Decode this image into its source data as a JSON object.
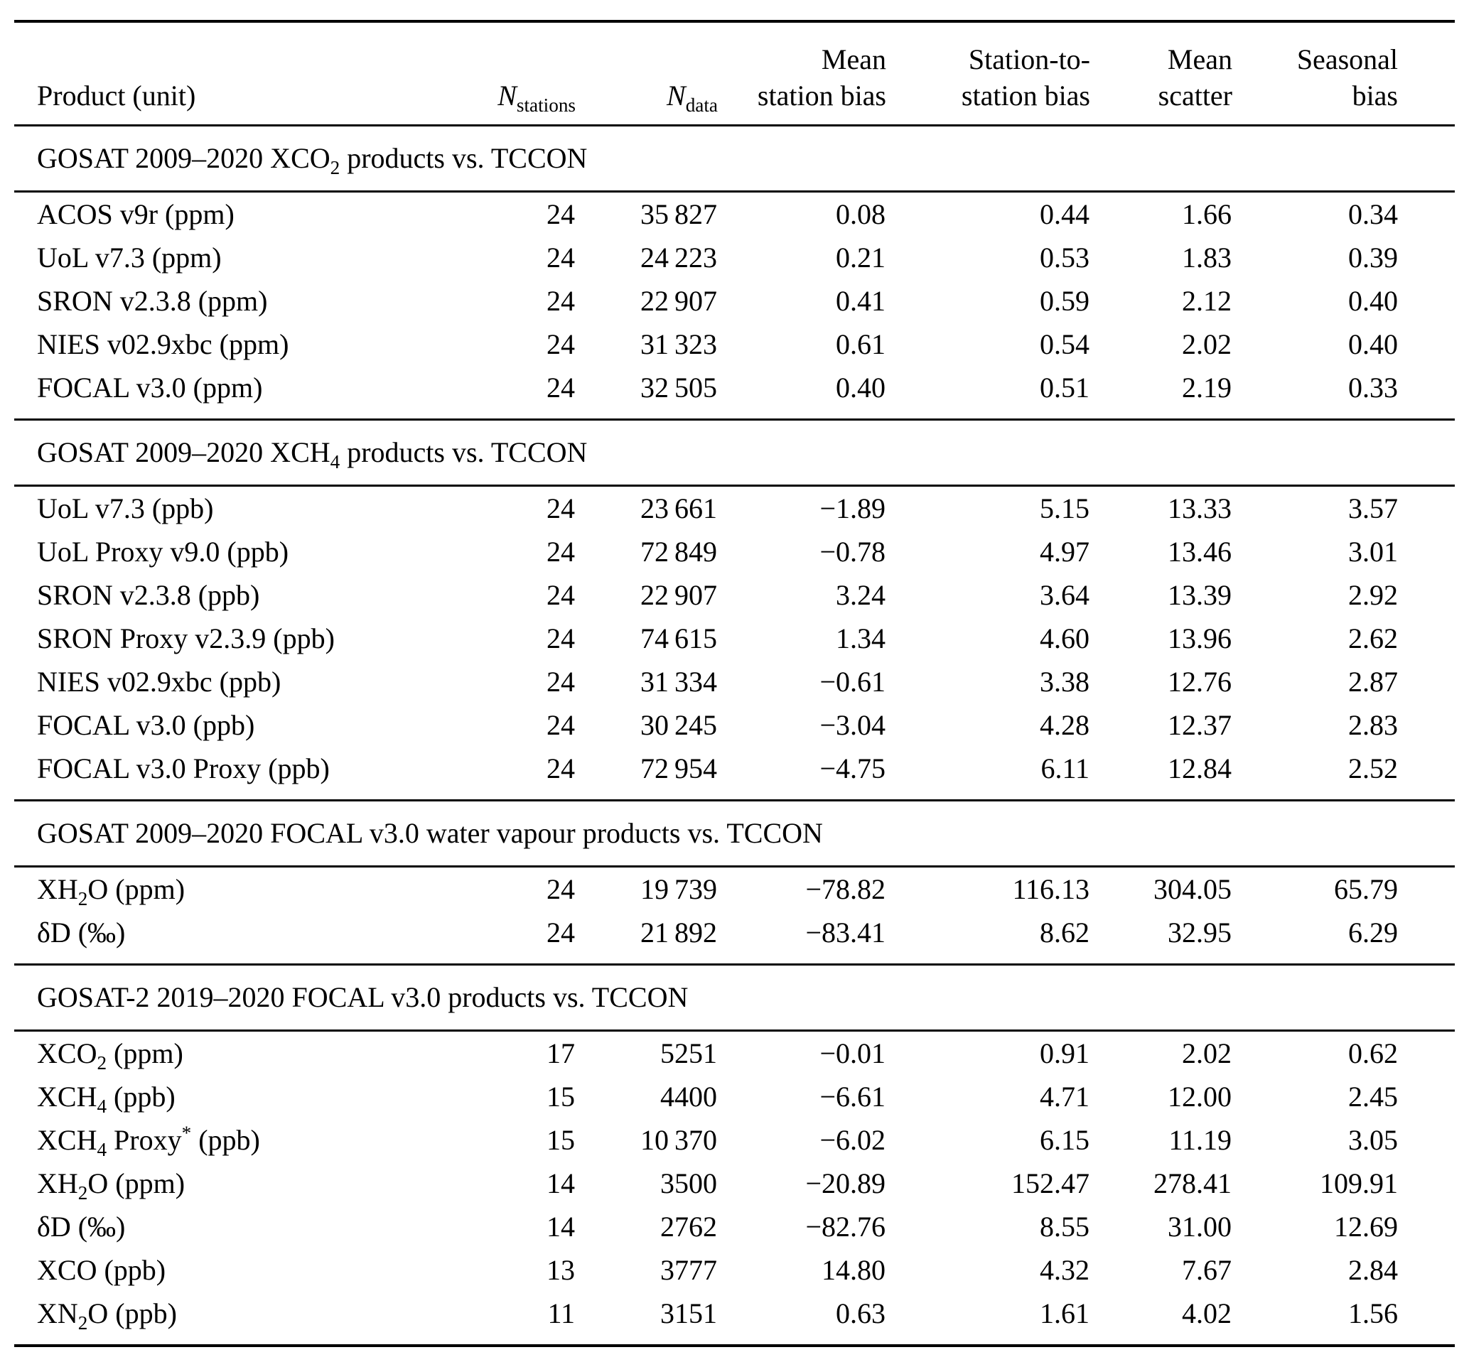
{
  "page": {
    "background_color": "#ffffff",
    "text_color": "#000000",
    "rule_color": "#000000"
  },
  "table": {
    "columns": [
      {
        "key": "product",
        "label_html": "Product (unit)",
        "align": "left"
      },
      {
        "key": "n-stations",
        "label_html": "<i>N</i><sub>stations</sub>",
        "align": "right"
      },
      {
        "key": "n-data",
        "label_html": "<i>N</i><sub>data</sub>",
        "align": "right"
      },
      {
        "key": "mean-station-bias",
        "label_html": "Mean<br>station bias",
        "align": "right"
      },
      {
        "key": "station-to-station-bias",
        "label_html": "Station-to-<br>station bias",
        "align": "right"
      },
      {
        "key": "mean-scatter",
        "label_html": "Mean<br>scatter",
        "align": "right"
      },
      {
        "key": "seasonal-bias",
        "label_html": "Seasonal<br>bias",
        "align": "right"
      }
    ],
    "sections": [
      {
        "title_html": "GOSAT 2009–2020 XCO<sub>2</sub> products vs. TCCON",
        "rows": [
          [
            "ACOS v9r (ppm)",
            "24",
            "35 827",
            "0.08",
            "0.44",
            "1.66",
            "0.34"
          ],
          [
            "UoL v7.3 (ppm)",
            "24",
            "24 223",
            "0.21",
            "0.53",
            "1.83",
            "0.39"
          ],
          [
            "SRON v2.3.8 (ppm)",
            "24",
            "22 907",
            "0.41",
            "0.59",
            "2.12",
            "0.40"
          ],
          [
            "NIES v02.9xbc (ppm)",
            "24",
            "31 323",
            "0.61",
            "0.54",
            "2.02",
            "0.40"
          ],
          [
            "FOCAL v3.0 (ppm)",
            "24",
            "32 505",
            "0.40",
            "0.51",
            "2.19",
            "0.33"
          ]
        ]
      },
      {
        "title_html": "GOSAT 2009–2020 XCH<sub>4</sub> products vs. TCCON",
        "rows": [
          [
            "UoL v7.3 (ppb)",
            "24",
            "23 661",
            "−1.89",
            "5.15",
            "13.33",
            "3.57"
          ],
          [
            "UoL Proxy v9.0 (ppb)",
            "24",
            "72 849",
            "−0.78",
            "4.97",
            "13.46",
            "3.01"
          ],
          [
            "SRON v2.3.8 (ppb)",
            "24",
            "22 907",
            "3.24",
            "3.64",
            "13.39",
            "2.92"
          ],
          [
            "SRON Proxy v2.3.9 (ppb)",
            "24",
            "74 615",
            "1.34",
            "4.60",
            "13.96",
            "2.62"
          ],
          [
            "NIES v02.9xbc (ppb)",
            "24",
            "31 334",
            "−0.61",
            "3.38",
            "12.76",
            "2.87"
          ],
          [
            "FOCAL v3.0 (ppb)",
            "24",
            "30 245",
            "−3.04",
            "4.28",
            "12.37",
            "2.83"
          ],
          [
            "FOCAL v3.0 Proxy (ppb)",
            "24",
            "72 954",
            "−4.75",
            "6.11",
            "12.84",
            "2.52"
          ]
        ]
      },
      {
        "title_html": "GOSAT 2009–2020 FOCAL v3.0 water vapour products vs. TCCON",
        "rows": [
          [
            "XH<sub>2</sub>O (ppm)",
            "24",
            "19 739",
            "−78.82",
            "116.13",
            "304.05",
            "65.79"
          ],
          [
            "δD (‰)",
            "24",
            "21 892",
            "−83.41",
            "8.62",
            "32.95",
            "6.29"
          ]
        ]
      },
      {
        "title_html": "GOSAT-2 2019–2020 FOCAL v3.0 products vs. TCCON",
        "rows": [
          [
            "XCO<sub>2</sub> (ppm)",
            "17",
            "5251",
            "−0.01",
            "0.91",
            "2.02",
            "0.62"
          ],
          [
            "XCH<sub>4</sub> (ppb)",
            "15",
            "4400",
            "−6.61",
            "4.71",
            "12.00",
            "2.45"
          ],
          [
            "XCH<sub>4</sub> Proxy<sup>*</sup> (ppb)",
            "15",
            "10 370",
            "−6.02",
            "6.15",
            "11.19",
            "3.05"
          ],
          [
            "XH<sub>2</sub>O (ppm)",
            "14",
            "3500",
            "−20.89",
            "152.47",
            "278.41",
            "109.91"
          ],
          [
            "δD (‰)",
            "14",
            "2762",
            "−82.76",
            "8.55",
            "31.00",
            "12.69"
          ],
          [
            "XCO (ppb)",
            "13",
            "3777",
            "14.80",
            "4.32",
            "7.67",
            "2.84"
          ],
          [
            "XN<sub>2</sub>O (ppb)",
            "11",
            "3151",
            "0.63",
            "1.61",
            "4.02",
            "1.56"
          ]
        ]
      }
    ]
  }
}
